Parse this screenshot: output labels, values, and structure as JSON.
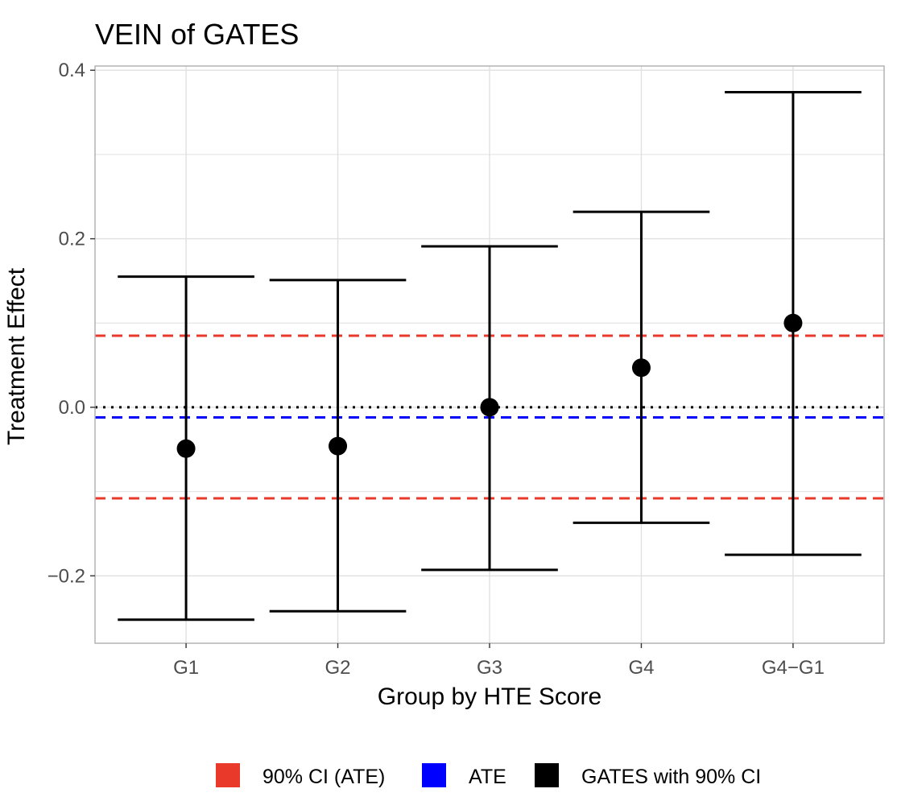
{
  "chart_data": {
    "type": "errorbar",
    "title": "VEIN of GATES",
    "xlabel": "Group by HTE Score",
    "ylabel": "Treatment Effect",
    "categories": [
      "G1",
      "G2",
      "G3",
      "G4",
      "G4−G1"
    ],
    "ylim": [
      -0.28,
      0.405
    ],
    "yticks": [
      -0.2,
      0.0,
      0.2,
      0.4
    ],
    "ytick_labels": [
      "−0.2",
      "0.0",
      "0.2",
      "0.4"
    ],
    "gates": {
      "estimate": [
        -0.049,
        -0.046,
        0.0,
        0.047,
        0.1
      ],
      "ci_lower": [
        -0.252,
        -0.242,
        -0.193,
        -0.137,
        -0.175
      ],
      "ci_upper": [
        0.155,
        0.151,
        0.191,
        0.232,
        0.374
      ]
    },
    "ate": -0.012,
    "ate_ci": [
      -0.108,
      0.085
    ],
    "reference_line": 0.0,
    "grid": true,
    "legend_position": "bottom",
    "legend": [
      {
        "label": "90% CI (ATE)",
        "color": "#e8392b"
      },
      {
        "label": "ATE",
        "color": "#0000ff"
      },
      {
        "label": "GATES with 90% CI",
        "color": "#000000"
      }
    ],
    "colors": {
      "ate_ci": "#e8392b",
      "ate": "#0000ff",
      "gates": "#000000",
      "zero_line": "#000000",
      "grid": "#e0e0e0",
      "panel_border": "#b3b3b3"
    }
  }
}
